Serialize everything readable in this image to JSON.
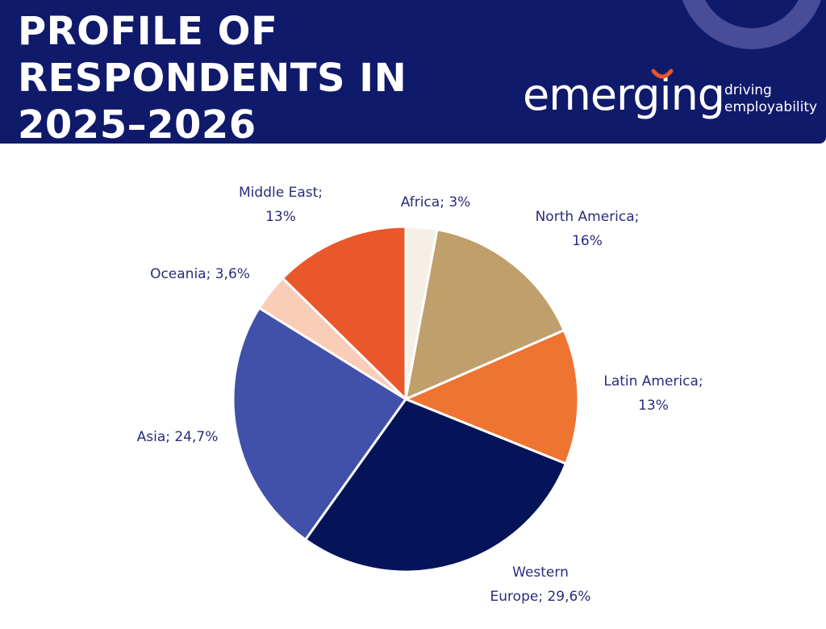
{
  "header": {
    "title_lines": [
      "PROFILE OF",
      "RESPONDENTS IN",
      "2025–2026"
    ],
    "bg_color": "#101a6b"
  },
  "logo": {
    "word": "emerging",
    "tagline_lines": [
      "driving",
      "employability"
    ],
    "accent_color": "#e8562a"
  },
  "chart_data": {
    "type": "pie",
    "title": "PROFILE OF RESPONDENTS IN 2025–2026",
    "start_angle_deg": 0,
    "direction": "clockwise",
    "legend": "none",
    "slices": [
      {
        "name": "Africa",
        "value": 3,
        "color": "#f5efe6",
        "label_lines": [
          "Africa; 3%"
        ]
      },
      {
        "name": "North America",
        "value": 16,
        "color": "#bf9f6b",
        "label_lines": [
          "North America;",
          "16%"
        ]
      },
      {
        "name": "Latin America",
        "value": 13,
        "color": "#ee7432",
        "label_lines": [
          "Latin America;",
          "13%"
        ]
      },
      {
        "name": "Western Europe",
        "value": 29.6,
        "color": "#051458",
        "label_lines": [
          "Western",
          "Europe; 29,6%"
        ]
      },
      {
        "name": "Asia",
        "value": 24.7,
        "color": "#4150a8",
        "label_lines": [
          "Asia; 24,7%"
        ]
      },
      {
        "name": "Oceania",
        "value": 3.6,
        "color": "#f9cdb8",
        "label_lines": [
          "Oceania; 3,6%"
        ]
      },
      {
        "name": "Middle East",
        "value": 13,
        "color": "#e9572a",
        "label_lines": [
          "Middle East;",
          "13%"
        ]
      }
    ]
  }
}
